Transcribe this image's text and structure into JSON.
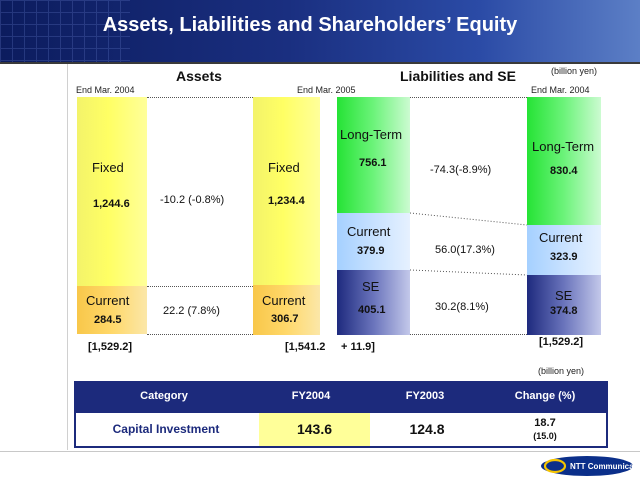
{
  "title": "Assets, Liabilities and Shareholders’ Equity",
  "unit_top": "(billion yen)",
  "unit_table": "(billion yen)",
  "sections": {
    "assets": "Assets",
    "liabilities": "Liabilities and SE"
  },
  "period_labels": {
    "assets_2004": "End Mar. 2004",
    "mid_2005": "End Mar. 2005",
    "le_2004": "End Mar. 2004"
  },
  "assets_2004": {
    "fixed_label": "Fixed",
    "fixed_value": "1,244.6",
    "current_label": "Current",
    "current_value": "284.5",
    "total": "[1,529.2]"
  },
  "assets_2005": {
    "fixed_label": "Fixed",
    "fixed_value": "1,234.4",
    "current_label": "Current",
    "current_value": "306.7",
    "total": "[1,541.2",
    "total_change": "+ 11.9]"
  },
  "le_2005": {
    "longterm_label": "Long-Term",
    "longterm_value": "756.1",
    "current_label": "Current",
    "current_value": "379.9",
    "se_label": "SE",
    "se_value": "405.1"
  },
  "le_2004": {
    "longterm_label": "Long-Term",
    "longterm_value": "830.4",
    "current_label": "Current",
    "current_value": "323.9",
    "se_label": "SE",
    "se_value": "374.8",
    "total": "[1,529.2]"
  },
  "changes": {
    "fixed": "-10.2 (-0.8%)",
    "current_assets": "22.2 (7.8%)",
    "longterm": "-74.3(-8.9%)",
    "current_liab": "56.0(17.3%)",
    "se": "30.2(8.1%)"
  },
  "table": {
    "headers": {
      "category": "Category",
      "fy2004": "FY2004",
      "fy2003": "FY2003",
      "change": "Change (%)"
    },
    "row": {
      "category": "Capital Investment",
      "fy2004": "143.6",
      "fy2003": "124.8",
      "change": "18.7",
      "change_pct": "(15.0)"
    }
  },
  "logo_text": "NTT Communications",
  "colors": {
    "header_navy": "#1a2f80",
    "fixed_yellow": "#ffff64",
    "current_orange": "#ffd86a",
    "longterm_green": "#6cf37a",
    "current_lightblue": "#c7e1ff",
    "se_navy": "#6a74bc",
    "highlight": "#ffff99"
  }
}
